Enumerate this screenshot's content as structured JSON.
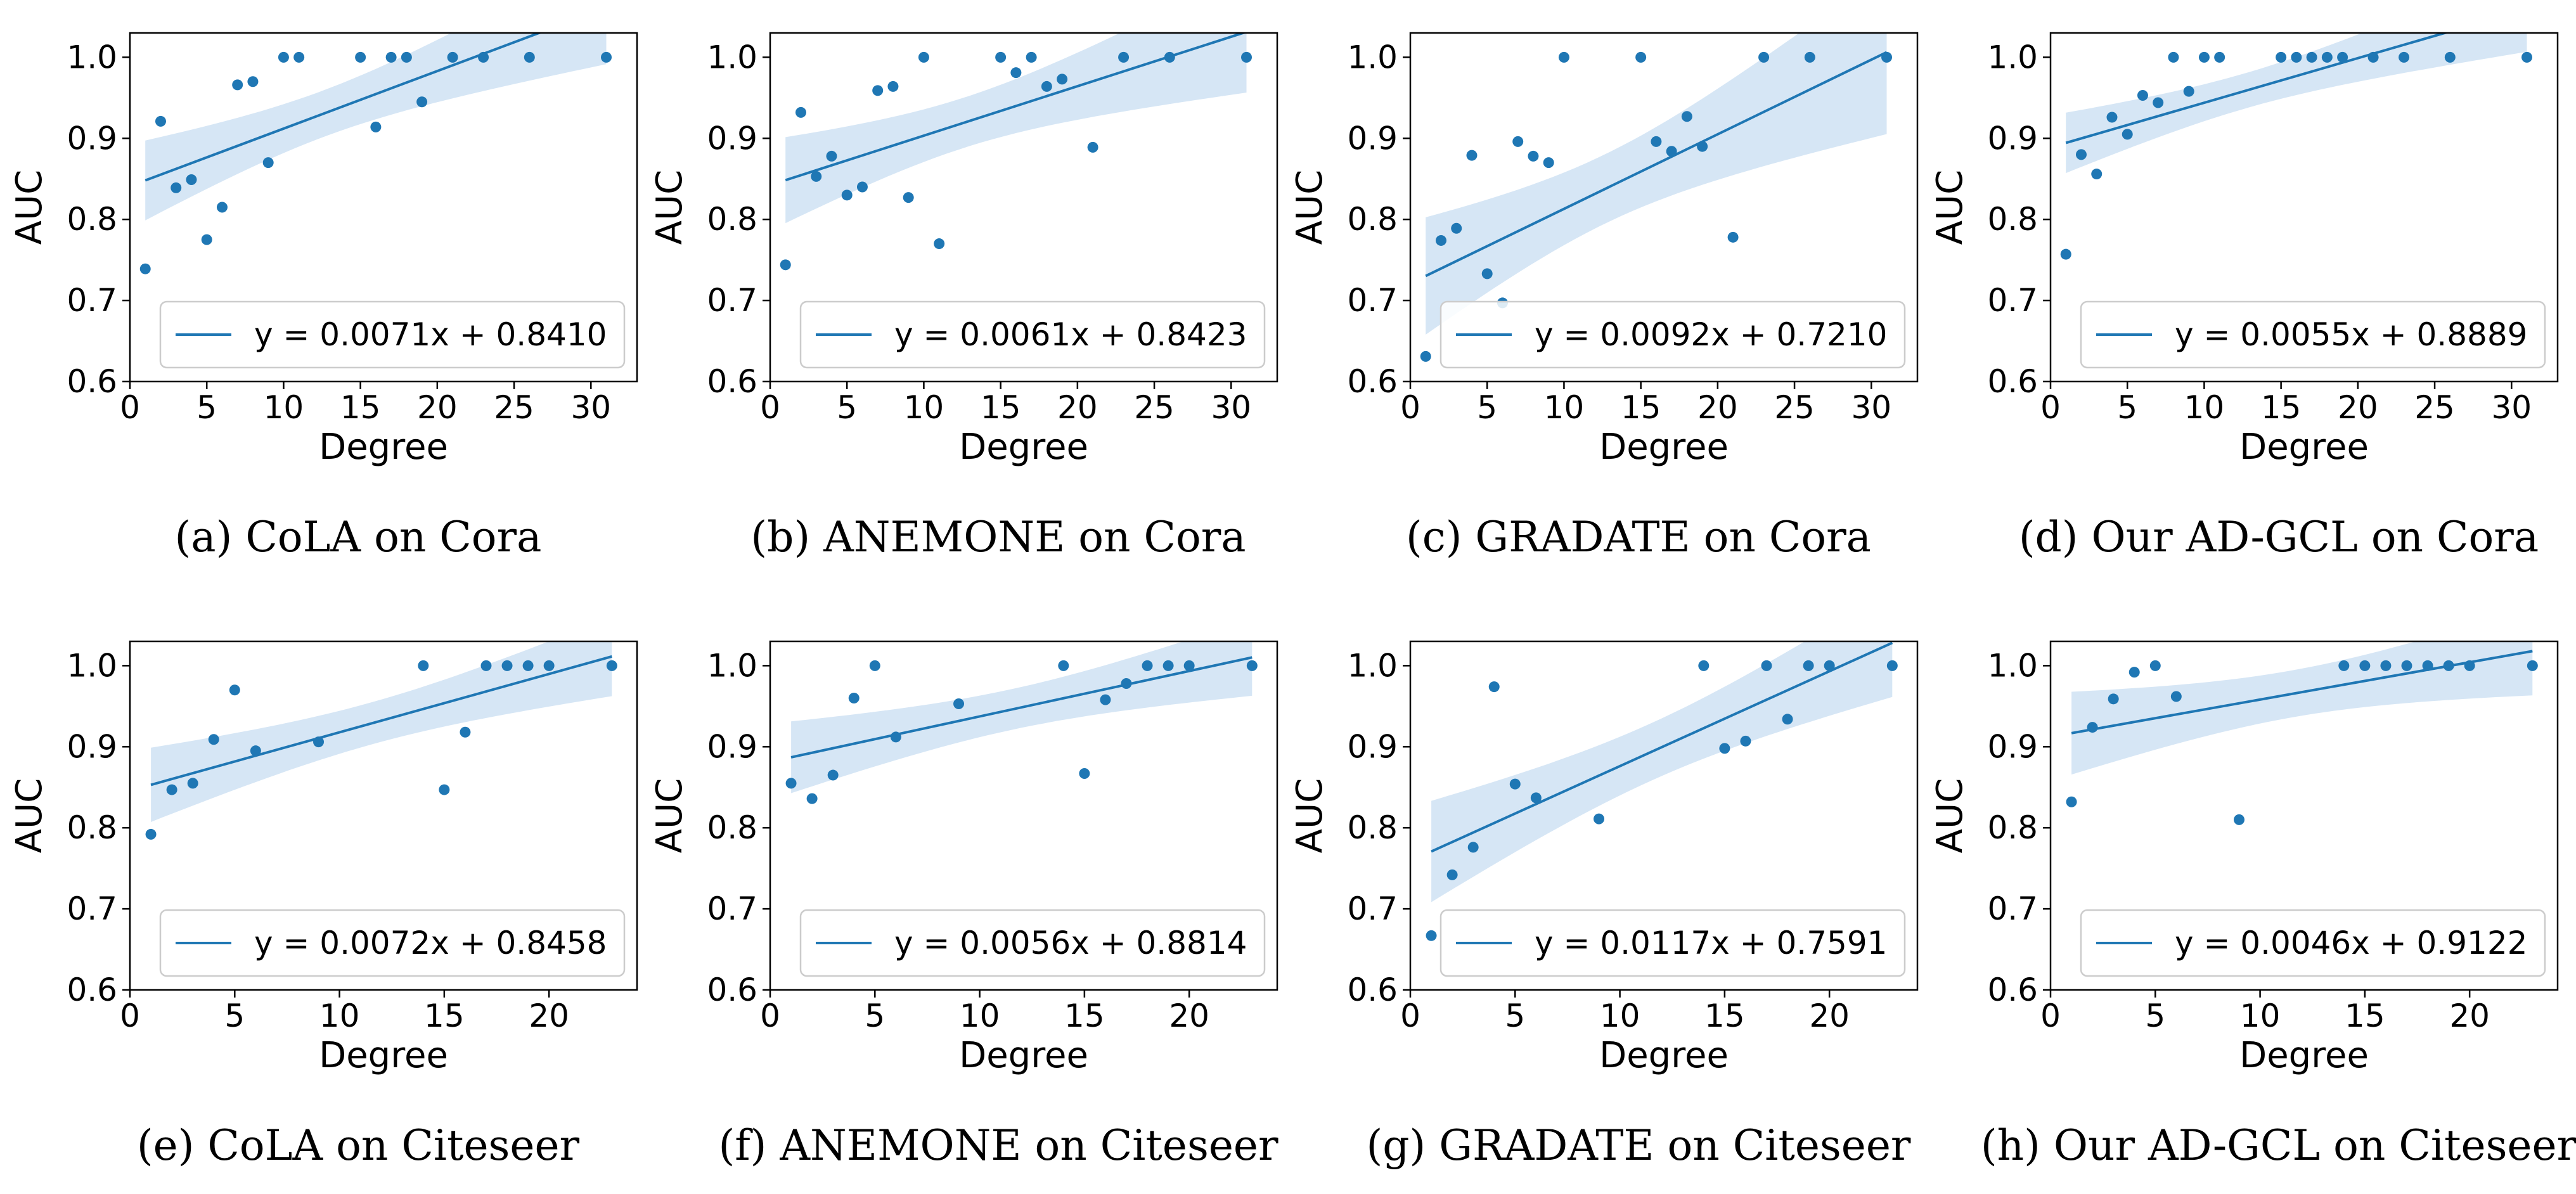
{
  "colors": {
    "series": "#1f77b4",
    "band": "#cfe2f3",
    "axis": "#000000",
    "legend_border": "#cccccc"
  },
  "axis_labels": {
    "x": "Degree",
    "y": "AUC"
  },
  "chart_data": [
    {
      "type": "scatter",
      "caption": "(a) CoLA on Cora",
      "legend": "y = 0.0071x + 0.8410",
      "legend_position": "lower-right",
      "fit": {
        "slope": 0.0071,
        "intercept": 0.841
      },
      "xlim": [
        0,
        33
      ],
      "ylim": [
        0.6,
        1.03
      ],
      "xticks": [
        0,
        5,
        10,
        15,
        20,
        25,
        30
      ],
      "yticks": [
        0.6,
        0.7,
        0.8,
        0.9,
        1.0
      ],
      "points": [
        [
          1,
          0.739
        ],
        [
          2,
          0.921
        ],
        [
          3,
          0.839
        ],
        [
          4,
          0.849
        ],
        [
          5,
          0.775
        ],
        [
          6,
          0.815
        ],
        [
          7,
          0.966
        ],
        [
          8,
          0.97
        ],
        [
          9,
          0.87
        ],
        [
          10,
          1.0
        ],
        [
          11,
          1.0
        ],
        [
          15,
          1.0
        ],
        [
          16,
          0.914
        ],
        [
          17,
          1.0
        ],
        [
          18,
          1.0
        ],
        [
          19,
          0.945
        ],
        [
          21,
          1.0
        ],
        [
          23,
          1.0
        ],
        [
          26,
          1.0
        ],
        [
          31,
          1.0
        ]
      ]
    },
    {
      "type": "scatter",
      "caption": "(b) ANEMONE on Cora",
      "legend": "y = 0.0061x + 0.8423",
      "legend_position": "lower-right",
      "fit": {
        "slope": 0.0061,
        "intercept": 0.8423
      },
      "xlim": [
        0,
        33
      ],
      "ylim": [
        0.6,
        1.03
      ],
      "xticks": [
        0,
        5,
        10,
        15,
        20,
        25,
        30
      ],
      "yticks": [
        0.6,
        0.7,
        0.8,
        0.9,
        1.0
      ],
      "points": [
        [
          1,
          0.744
        ],
        [
          2,
          0.932
        ],
        [
          3,
          0.853
        ],
        [
          4,
          0.878
        ],
        [
          5,
          0.83
        ],
        [
          6,
          0.84
        ],
        [
          7,
          0.959
        ],
        [
          8,
          0.964
        ],
        [
          9,
          0.827
        ],
        [
          10,
          1.0
        ],
        [
          11,
          0.77
        ],
        [
          15,
          1.0
        ],
        [
          16,
          0.981
        ],
        [
          17,
          1.0
        ],
        [
          18,
          0.964
        ],
        [
          19,
          0.973
        ],
        [
          21,
          0.889
        ],
        [
          23,
          1.0
        ],
        [
          26,
          1.0
        ],
        [
          31,
          1.0
        ]
      ]
    },
    {
      "type": "scatter",
      "caption": "(c) GRADATE on Cora",
      "legend": "y = 0.0092x + 0.7210",
      "legend_position": "lower-right",
      "fit": {
        "slope": 0.0092,
        "intercept": 0.721
      },
      "xlim": [
        0,
        33
      ],
      "ylim": [
        0.6,
        1.03
      ],
      "xticks": [
        0,
        5,
        10,
        15,
        20,
        25,
        30
      ],
      "yticks": [
        0.6,
        0.7,
        0.8,
        0.9,
        1.0
      ],
      "points": [
        [
          1,
          0.631
        ],
        [
          2,
          0.774
        ],
        [
          3,
          0.789
        ],
        [
          4,
          0.879
        ],
        [
          5,
          0.733
        ],
        [
          6,
          0.697
        ],
        [
          7,
          0.896
        ],
        [
          8,
          0.878
        ],
        [
          9,
          0.87
        ],
        [
          10,
          1.0
        ],
        [
          15,
          1.0
        ],
        [
          16,
          0.896
        ],
        [
          17,
          0.884
        ],
        [
          18,
          0.927
        ],
        [
          19,
          0.89
        ],
        [
          21,
          0.778
        ],
        [
          23,
          1.0
        ],
        [
          26,
          1.0
        ],
        [
          31,
          1.0
        ]
      ]
    },
    {
      "type": "scatter",
      "caption": "(d) Our AD-GCL on Cora",
      "legend": "y = 0.0055x + 0.8889",
      "legend_position": "lower-right",
      "fit": {
        "slope": 0.0055,
        "intercept": 0.8889
      },
      "xlim": [
        0,
        33
      ],
      "ylim": [
        0.6,
        1.03
      ],
      "xticks": [
        0,
        5,
        10,
        15,
        20,
        25,
        30
      ],
      "yticks": [
        0.6,
        0.7,
        0.8,
        0.9,
        1.0
      ],
      "points": [
        [
          1,
          0.757
        ],
        [
          2,
          0.88
        ],
        [
          3,
          0.856
        ],
        [
          4,
          0.926
        ],
        [
          5,
          0.905
        ],
        [
          6,
          0.953
        ],
        [
          7,
          0.944
        ],
        [
          8,
          1.0
        ],
        [
          9,
          0.958
        ],
        [
          10,
          1.0
        ],
        [
          11,
          1.0
        ],
        [
          15,
          1.0
        ],
        [
          16,
          1.0
        ],
        [
          17,
          1.0
        ],
        [
          18,
          1.0
        ],
        [
          19,
          1.0
        ],
        [
          21,
          1.0
        ],
        [
          23,
          1.0
        ],
        [
          26,
          1.0
        ],
        [
          31,
          1.0
        ]
      ]
    },
    {
      "type": "scatter",
      "caption": "(e) CoLA on Citeseer",
      "legend": "y = 0.0072x + 0.8458",
      "legend_position": "lower-right",
      "fit": {
        "slope": 0.0072,
        "intercept": 0.8458
      },
      "xlim": [
        0,
        24.2
      ],
      "ylim": [
        0.6,
        1.03
      ],
      "xticks": [
        0,
        5,
        10,
        15,
        20
      ],
      "yticks": [
        0.6,
        0.7,
        0.8,
        0.9,
        1.0
      ],
      "points": [
        [
          1,
          0.792
        ],
        [
          2,
          0.847
        ],
        [
          3,
          0.855
        ],
        [
          4,
          0.909
        ],
        [
          5,
          0.97
        ],
        [
          6,
          0.895
        ],
        [
          9,
          0.906
        ],
        [
          14,
          1.0
        ],
        [
          15,
          0.847
        ],
        [
          16,
          0.918
        ],
        [
          17,
          1.0
        ],
        [
          18,
          1.0
        ],
        [
          19,
          1.0
        ],
        [
          20,
          1.0
        ],
        [
          23,
          1.0
        ]
      ]
    },
    {
      "type": "scatter",
      "caption": "(f) ANEMONE on Citeseer",
      "legend": "y = 0.0056x + 0.8814",
      "legend_position": "lower-right",
      "fit": {
        "slope": 0.0056,
        "intercept": 0.8814
      },
      "xlim": [
        0,
        24.2
      ],
      "ylim": [
        0.6,
        1.03
      ],
      "xticks": [
        0,
        5,
        10,
        15,
        20
      ],
      "yticks": [
        0.6,
        0.7,
        0.8,
        0.9,
        1.0
      ],
      "points": [
        [
          1,
          0.855
        ],
        [
          2,
          0.836
        ],
        [
          3,
          0.865
        ],
        [
          4,
          0.96
        ],
        [
          5,
          1.0
        ],
        [
          6,
          0.912
        ],
        [
          9,
          0.953
        ],
        [
          14,
          1.0
        ],
        [
          15,
          0.867
        ],
        [
          16,
          0.958
        ],
        [
          17,
          0.978
        ],
        [
          18,
          1.0
        ],
        [
          19,
          1.0
        ],
        [
          20,
          1.0
        ],
        [
          23,
          1.0
        ]
      ]
    },
    {
      "type": "scatter",
      "caption": "(g) GRADATE on Citeseer",
      "legend": "y = 0.0117x + 0.7591",
      "legend_position": "lower-right",
      "fit": {
        "slope": 0.0117,
        "intercept": 0.7591
      },
      "xlim": [
        0,
        24.2
      ],
      "ylim": [
        0.6,
        1.03
      ],
      "xticks": [
        0,
        5,
        10,
        15,
        20
      ],
      "yticks": [
        0.6,
        0.7,
        0.8,
        0.9,
        1.0
      ],
      "points": [
        [
          1,
          0.667
        ],
        [
          2,
          0.742
        ],
        [
          3,
          0.776
        ],
        [
          4,
          0.974
        ],
        [
          5,
          0.854
        ],
        [
          6,
          0.837
        ],
        [
          9,
          0.811
        ],
        [
          14,
          1.0
        ],
        [
          15,
          0.898
        ],
        [
          16,
          0.907
        ],
        [
          17,
          1.0
        ],
        [
          18,
          0.934
        ],
        [
          19,
          1.0
        ],
        [
          20,
          1.0
        ],
        [
          23,
          1.0
        ]
      ]
    },
    {
      "type": "scatter",
      "caption": "(h) Our AD-GCL on Citeseer",
      "legend": "y = 0.0046x + 0.9122",
      "legend_position": "lower-right",
      "fit": {
        "slope": 0.0046,
        "intercept": 0.9122
      },
      "xlim": [
        0,
        24.2
      ],
      "ylim": [
        0.6,
        1.03
      ],
      "xticks": [
        0,
        5,
        10,
        15,
        20
      ],
      "yticks": [
        0.6,
        0.7,
        0.8,
        0.9,
        1.0
      ],
      "points": [
        [
          1,
          0.832
        ],
        [
          2,
          0.924
        ],
        [
          3,
          0.959
        ],
        [
          4,
          0.992
        ],
        [
          5,
          1.0
        ],
        [
          6,
          0.962
        ],
        [
          9,
          0.81
        ],
        [
          14,
          1.0
        ],
        [
          15,
          1.0
        ],
        [
          16,
          1.0
        ],
        [
          17,
          1.0
        ],
        [
          18,
          1.0
        ],
        [
          19,
          1.0
        ],
        [
          20,
          1.0
        ],
        [
          23,
          1.0
        ]
      ]
    }
  ]
}
